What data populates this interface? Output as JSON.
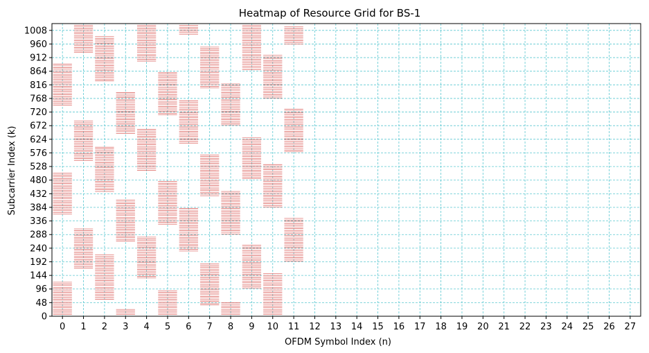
{
  "chart_data": {
    "type": "heatmap",
    "title": "Heatmap of Resource Grid for BS-1",
    "xlabel": "OFDM Symbol Index (n)",
    "ylabel": "Subcarrier Index (k)",
    "x_ticks": [
      "0",
      "1",
      "2",
      "3",
      "4",
      "5",
      "6",
      "7",
      "8",
      "9",
      "10",
      "11",
      "12",
      "13",
      "14",
      "15",
      "16",
      "17",
      "18",
      "19",
      "20",
      "21",
      "22",
      "23",
      "24",
      "25",
      "26",
      "27"
    ],
    "y_ticks": [
      "0",
      "48",
      "96",
      "144",
      "192",
      "240",
      "288",
      "336",
      "384",
      "432",
      "480",
      "528",
      "576",
      "624",
      "672",
      "720",
      "768",
      "816",
      "864",
      "912",
      "960",
      "1008"
    ],
    "xlim": [
      -0.5,
      27.5
    ],
    "ylim": [
      0,
      1032
    ],
    "grid": true,
    "grid_color": "#5bc8d1",
    "line_color": "#d9534f",
    "occupied_ranges": [
      {
        "symbol": 0,
        "k_start": 0,
        "k_end": 120
      },
      {
        "symbol": 0,
        "k_start": 360,
        "k_end": 505
      },
      {
        "symbol": 0,
        "k_start": 745,
        "k_end": 890
      },
      {
        "symbol": 1,
        "k_start": 170,
        "k_end": 310
      },
      {
        "symbol": 1,
        "k_start": 550,
        "k_end": 690
      },
      {
        "symbol": 1,
        "k_start": 930,
        "k_end": 1030
      },
      {
        "symbol": 2,
        "k_start": 60,
        "k_end": 220
      },
      {
        "symbol": 2,
        "k_start": 440,
        "k_end": 600
      },
      {
        "symbol": 2,
        "k_start": 830,
        "k_end": 990
      },
      {
        "symbol": 3,
        "k_start": 0,
        "k_end": 25
      },
      {
        "symbol": 3,
        "k_start": 265,
        "k_end": 410
      },
      {
        "symbol": 3,
        "k_start": 645,
        "k_end": 790
      },
      {
        "symbol": 4,
        "k_start": 135,
        "k_end": 280
      },
      {
        "symbol": 4,
        "k_start": 515,
        "k_end": 660
      },
      {
        "symbol": 4,
        "k_start": 900,
        "k_end": 1030
      },
      {
        "symbol": 5,
        "k_start": 0,
        "k_end": 95
      },
      {
        "symbol": 5,
        "k_start": 325,
        "k_end": 475
      },
      {
        "symbol": 5,
        "k_start": 710,
        "k_end": 860
      },
      {
        "symbol": 6,
        "k_start": 230,
        "k_end": 380
      },
      {
        "symbol": 6,
        "k_start": 610,
        "k_end": 760
      },
      {
        "symbol": 6,
        "k_start": 995,
        "k_end": 1030
      },
      {
        "symbol": 7,
        "k_start": 40,
        "k_end": 185
      },
      {
        "symbol": 7,
        "k_start": 425,
        "k_end": 570
      },
      {
        "symbol": 7,
        "k_start": 805,
        "k_end": 950
      },
      {
        "symbol": 8,
        "k_start": 0,
        "k_end": 50
      },
      {
        "symbol": 8,
        "k_start": 290,
        "k_end": 440
      },
      {
        "symbol": 8,
        "k_start": 675,
        "k_end": 820
      },
      {
        "symbol": 9,
        "k_start": 100,
        "k_end": 250
      },
      {
        "symbol": 9,
        "k_start": 485,
        "k_end": 630
      },
      {
        "symbol": 9,
        "k_start": 870,
        "k_end": 1030
      },
      {
        "symbol": 10,
        "k_start": 0,
        "k_end": 150
      },
      {
        "symbol": 10,
        "k_start": 385,
        "k_end": 535
      },
      {
        "symbol": 10,
        "k_start": 770,
        "k_end": 920
      },
      {
        "symbol": 11,
        "k_start": 195,
        "k_end": 350
      },
      {
        "symbol": 11,
        "k_start": 580,
        "k_end": 735
      },
      {
        "symbol": 11,
        "k_start": 960,
        "k_end": 1020
      }
    ]
  }
}
